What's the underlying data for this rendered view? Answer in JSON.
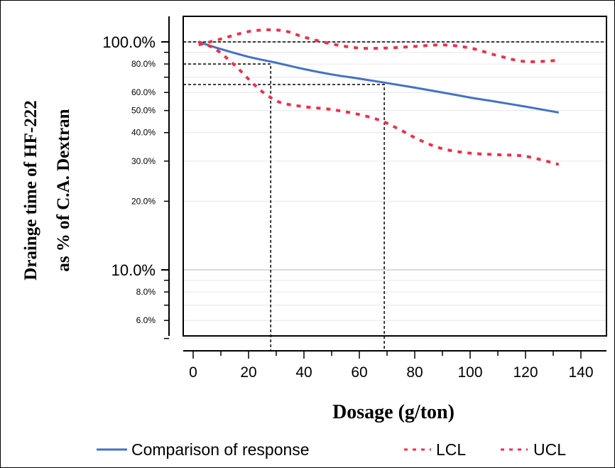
{
  "chart_data": {
    "type": "line",
    "title": "",
    "xlabel": "Dosage (g/ton)",
    "ylabel_lines": [
      "Drainge time of HF-222",
      "as % of C.A. Dextran"
    ],
    "xlim": [
      0,
      140
    ],
    "x_ticks": [
      0,
      20,
      40,
      60,
      80,
      100,
      120,
      140
    ],
    "y_scale": "log",
    "ylim": [
      0.05,
      1.2
    ],
    "y_ticks_major": [
      {
        "value": 1.0,
        "label": "100.0%"
      },
      {
        "value": 0.1,
        "label": "10.0%"
      }
    ],
    "y_ticks_minor": [
      {
        "value": 0.8,
        "label": "80.0%"
      },
      {
        "value": 0.6,
        "label": "60.0%"
      },
      {
        "value": 0.5,
        "label": "50.0%"
      },
      {
        "value": 0.4,
        "label": "40.0%"
      },
      {
        "value": 0.3,
        "label": "30.0%"
      },
      {
        "value": 0.2,
        "label": "20.0%"
      },
      {
        "value": 0.08,
        "label": "8.0%"
      },
      {
        "value": 0.06,
        "label": "6.0%"
      }
    ],
    "grid": true,
    "legend_position": "bottom",
    "series": [
      {
        "name": "Comparison of response",
        "color": "#4472c4",
        "style": "solid",
        "x": [
          2,
          10,
          20,
          30,
          40,
          50,
          60,
          70,
          80,
          90,
          100,
          110,
          120,
          132
        ],
        "y": [
          1.0,
          0.93,
          0.86,
          0.81,
          0.76,
          0.72,
          0.69,
          0.66,
          0.63,
          0.6,
          0.57,
          0.545,
          0.52,
          0.49
        ]
      },
      {
        "name": "LCL",
        "color": "#e8334a",
        "style": "dotted",
        "x": [
          2,
          8,
          15,
          22,
          27,
          32,
          40,
          50,
          60,
          68,
          75,
          82,
          90,
          100,
          110,
          120,
          132
        ],
        "y": [
          1.0,
          0.93,
          0.79,
          0.65,
          0.58,
          0.54,
          0.52,
          0.505,
          0.48,
          0.45,
          0.41,
          0.37,
          0.34,
          0.325,
          0.32,
          0.315,
          0.29
        ]
      },
      {
        "name": "UCL",
        "color": "#e8334a",
        "style": "dotted",
        "x": [
          2,
          10,
          20,
          28,
          34,
          40,
          50,
          60,
          70,
          80,
          90,
          100,
          110,
          120,
          132
        ],
        "y": [
          0.97,
          1.03,
          1.11,
          1.13,
          1.11,
          1.05,
          0.98,
          0.94,
          0.94,
          0.955,
          0.97,
          0.94,
          0.87,
          0.82,
          0.83
        ]
      }
    ],
    "reference_lines": [
      {
        "value": 1.0,
        "orientation": "horizontal"
      },
      {
        "x": 28,
        "y": 0.8,
        "orientation": "corner"
      },
      {
        "x": 69,
        "y": 0.65,
        "orientation": "corner"
      }
    ]
  }
}
